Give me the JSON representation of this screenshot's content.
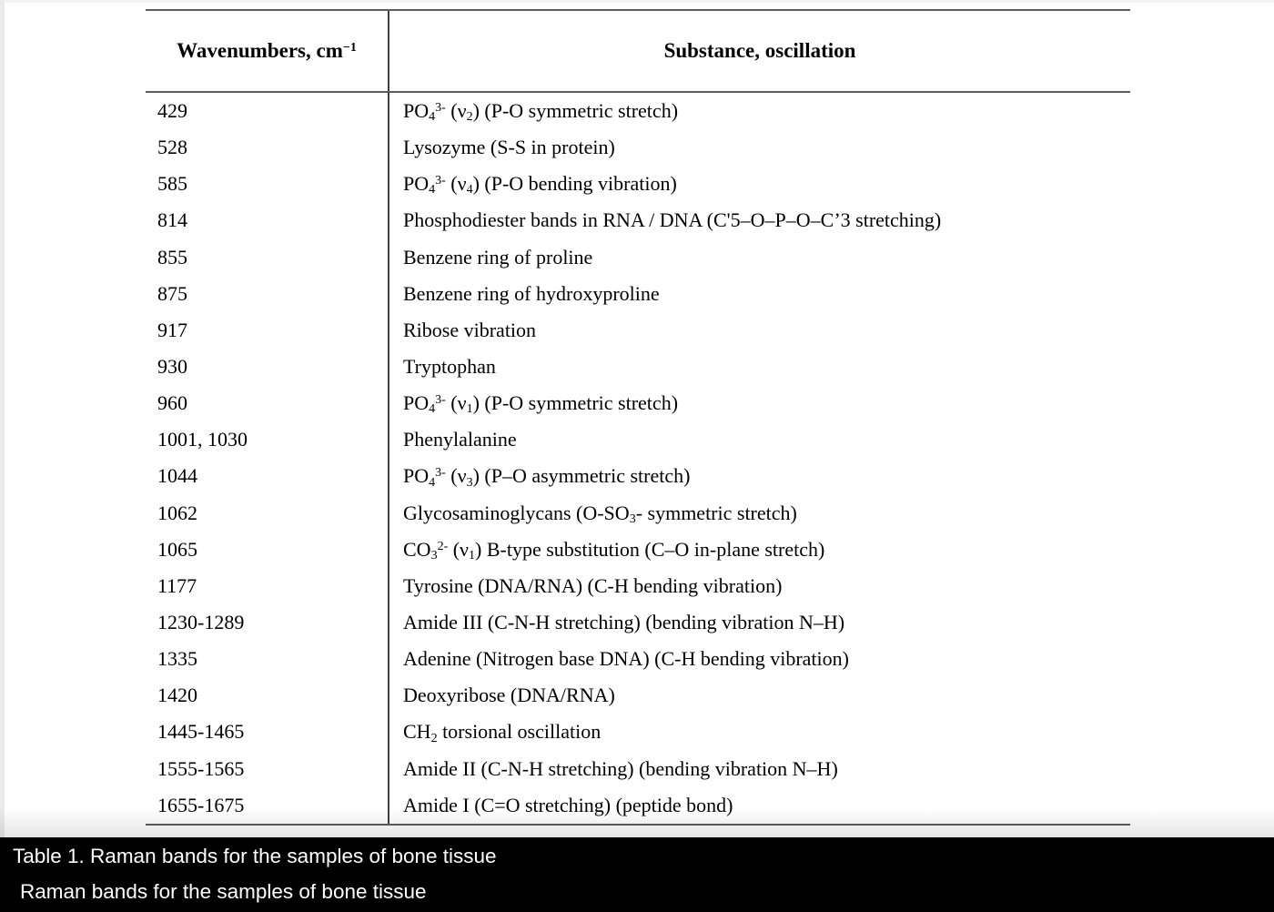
{
  "colors": {
    "text": "#000000",
    "rule": "#5c5c5c",
    "divider": "#3f3f3f",
    "caption_bg": "#000000",
    "caption_text": "#ffffff"
  },
  "table": {
    "header": {
      "col1_segments": [
        {
          "t": "Wavenumbers, cm"
        },
        {
          "t": "−1",
          "s": "sup"
        }
      ],
      "col2": "Substance, oscillation"
    },
    "rows": [
      {
        "wavenumber": "429",
        "substance": [
          {
            "t": "PO"
          },
          {
            "t": "4",
            "s": "sub"
          },
          {
            "t": "3-",
            "s": "sup"
          },
          {
            "t": " (ν"
          },
          {
            "t": "2",
            "s": "sub"
          },
          {
            "t": ") (P-O symmetric stretch)"
          }
        ]
      },
      {
        "wavenumber": "528",
        "substance": [
          {
            "t": "Lysozyme (S-S in protein)"
          }
        ]
      },
      {
        "wavenumber": "585",
        "substance": [
          {
            "t": "PO"
          },
          {
            "t": "4",
            "s": "sub"
          },
          {
            "t": "3-",
            "s": "sup"
          },
          {
            "t": " (ν"
          },
          {
            "t": "4",
            "s": "sub"
          },
          {
            "t": ") (P-O bending vibration)"
          }
        ]
      },
      {
        "wavenumber": "814",
        "substance": [
          {
            "t": "Phosphodiester bands in RNA / DNA (C'5–O–P–O–C’3 stretching)"
          }
        ]
      },
      {
        "wavenumber": "855",
        "substance": [
          {
            "t": "Benzene ring of proline"
          }
        ]
      },
      {
        "wavenumber": "875",
        "substance": [
          {
            "t": "Benzene ring of hydroxyproline"
          }
        ]
      },
      {
        "wavenumber": "917",
        "substance": [
          {
            "t": "Ribose vibration"
          }
        ]
      },
      {
        "wavenumber": "930",
        "substance": [
          {
            "t": "Tryptophan"
          }
        ]
      },
      {
        "wavenumber": "960",
        "substance": [
          {
            "t": "PO"
          },
          {
            "t": "4",
            "s": "sub"
          },
          {
            "t": "3-",
            "s": "sup"
          },
          {
            "t": " (ν"
          },
          {
            "t": "1",
            "s": "sub"
          },
          {
            "t": ") (P-O symmetric stretch)"
          }
        ]
      },
      {
        "wavenumber": "1001, 1030",
        "substance": [
          {
            "t": "Phenylalanine"
          }
        ]
      },
      {
        "wavenumber": "1044",
        "substance": [
          {
            "t": "PO"
          },
          {
            "t": "4",
            "s": "sub"
          },
          {
            "t": "3-",
            "s": "sup"
          },
          {
            "t": " (ν"
          },
          {
            "t": "3",
            "s": "sub"
          },
          {
            "t": ") (P–O asymmetric stretch)"
          }
        ]
      },
      {
        "wavenumber": "1062",
        "substance": [
          {
            "t": "Glycosaminoglycans (O-SO"
          },
          {
            "t": "3",
            "s": "sub"
          },
          {
            "t": "- symmetric stretch)"
          }
        ]
      },
      {
        "wavenumber": "1065",
        "substance": [
          {
            "t": "CO"
          },
          {
            "t": "3",
            "s": "sub"
          },
          {
            "t": "2-",
            "s": "sup"
          },
          {
            "t": " (ν"
          },
          {
            "t": "1",
            "s": "sub"
          },
          {
            "t": ") B-type substitution (C–O in-plane stretch)"
          }
        ]
      },
      {
        "wavenumber": "1177",
        "substance": [
          {
            "t": "Tyrosine (DNA/RNA) (C-H bending vibration)"
          }
        ]
      },
      {
        "wavenumber": "1230-1289",
        "substance": [
          {
            "t": "Amide III (C-N-H stretching) (bending vibration N–H)"
          }
        ]
      },
      {
        "wavenumber": "1335",
        "substance": [
          {
            "t": "Adenine (Nitrogen base DNA) (C-H bending vibration)"
          }
        ]
      },
      {
        "wavenumber": "1420",
        "substance": [
          {
            "t": "Deoxyribose (DNA/RNA)"
          }
        ]
      },
      {
        "wavenumber": "1445-1465",
        "substance": [
          {
            "t": "CH"
          },
          {
            "t": "2",
            "s": "sub"
          },
          {
            "t": " torsional oscillation"
          }
        ]
      },
      {
        "wavenumber": "1555-1565",
        "substance": [
          {
            "t": "Amide II (C-N-H stretching) (bending vibration N–H)"
          }
        ]
      },
      {
        "wavenumber": "1655-1675",
        "substance": [
          {
            "t": "Amide I (C=O stretching) (peptide bond)"
          }
        ]
      }
    ]
  },
  "caption": {
    "line1": "Table 1. Raman bands for the samples of bone tissue",
    "line2": "Raman bands for the samples of bone tissue"
  }
}
